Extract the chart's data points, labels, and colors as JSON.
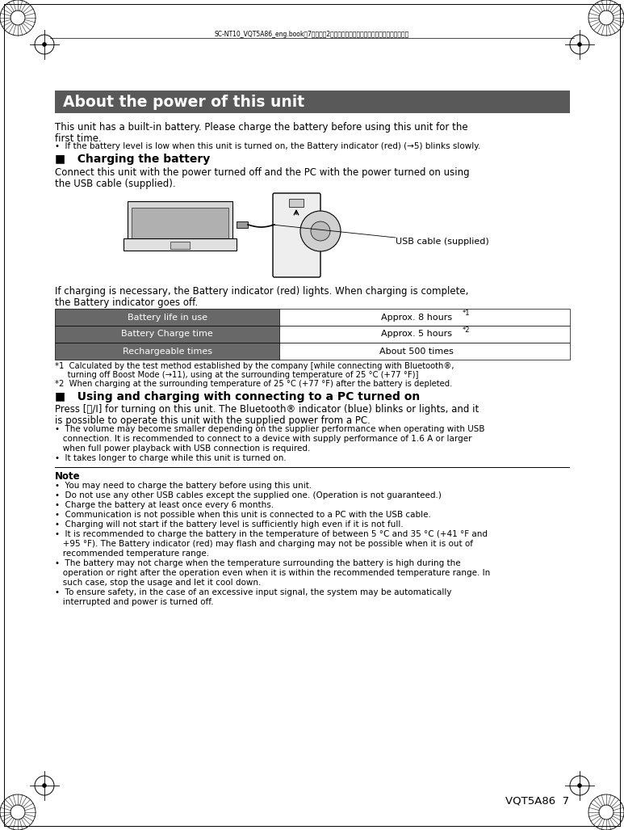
{
  "bg_color": "#ffffff",
  "header_text": "SC-NT10_VQT5A86_eng.book　7ページ　2０１３年６月６日　木曜日　午後１２時２２分",
  "title_text": "About the power of this unit",
  "title_bg": "#595959",
  "title_color": "#ffffff",
  "body_text_1a": "This unit has a built-in battery. Please charge the battery before using this unit for the",
  "body_text_1b": "first time.",
  "bullet_1": "•  If the battery level is low when this unit is turned on, the Battery indicator (red) (→5) blinks slowly.",
  "section1_title": "■   Charging the battery",
  "section1_body_a": "Connect this unit with the power turned off and the PC with the power turned on using",
  "section1_body_b": "the USB cable (supplied).",
  "usb_label": "USB cable (supplied)",
  "charging_text_a": "If charging is necessary, the Battery indicator (red) lights. When charging is complete,",
  "charging_text_b": "the Battery indicator goes off.",
  "table_rows": [
    [
      "Battery life in use",
      "Approx. 8 hours",
      "*1"
    ],
    [
      "Battery Charge time",
      "Approx. 5 hours",
      "*2"
    ],
    [
      "Rechargeable times",
      "About 500 times",
      ""
    ]
  ],
  "table_col1_bg": "#686868",
  "table_col1_color": "#ffffff",
  "table_col2_bg": "#ffffff",
  "table_col2_color": "#000000",
  "footnote1a": "*1  Calculated by the test method established by the company [while connecting with Bluetooth®,",
  "footnote1b": "     turning off Boost Mode (→11), using at the surrounding temperature of 25 °C (+77 °F)]",
  "footnote2": "*2  When charging at the surrounding temperature of 25 °C (+77 °F) after the battery is depleted.",
  "section2_title": "■   Using and charging with connecting to a PC turned on",
  "section2_body_a": "Press [⏻/I] for turning on this unit. The Bluetooth® indicator (blue) blinks or lights, and it",
  "section2_body_b": "is possible to operate this unit with the supplied power from a PC.",
  "bullet_2a": "•  The volume may become smaller depending on the supplier performance when operating with USB",
  "bullet_2b": "   connection. It is recommended to connect to a device with supply performance of 1.6 A or larger",
  "bullet_2c": "   when full power playback with USB connection is required.",
  "bullet_3": "•  It takes longer to charge while this unit is turned on.",
  "note_title": "Note",
  "note_bullets": [
    "•  You may need to charge the battery before using this unit.",
    "•  Do not use any other USB cables except the supplied one. (Operation is not guaranteed.)",
    "•  Charge the battery at least once every 6 months.",
    "•  Communication is not possible when this unit is connected to a PC with the USB cable.",
    "•  Charging will not start if the battery level is sufficiently high even if it is not full.",
    "•  It is recommended to charge the battery in the temperature of between 5 °C and 35 °C (+41 °F and",
    "   +95 °F). The Battery indicator (red) may flash and charging may not be possible when it is out of",
    "   recommended temperature range.",
    "•  The battery may not charge when the temperature surrounding the battery is high during the",
    "   operation or right after the operation even when it is within the recommended temperature range. In",
    "   such case, stop the usage and let it cool down.",
    "•  To ensure safety, in the case of an excessive input signal, the system may be automatically",
    "   interrupted and power is turned off."
  ],
  "footer_right": "VQT5A86  7"
}
